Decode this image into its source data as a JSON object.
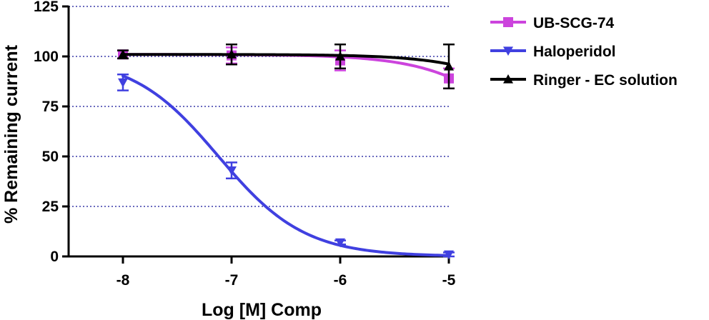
{
  "chart_data": {
    "type": "line",
    "title": "",
    "xlabel": "Log [M] Comp",
    "ylabel": "% Remaining current",
    "xlim": [
      -8.5,
      -5
    ],
    "ylim": [
      0,
      125
    ],
    "xticks": [
      -8,
      -7,
      -6,
      -5
    ],
    "xtick_labels": [
      "-8",
      "-7",
      "-6",
      "-5"
    ],
    "yticks": [
      0,
      25,
      50,
      75,
      100,
      125
    ],
    "ytick_labels": [
      "0",
      "25",
      "50",
      "75",
      "100",
      "125"
    ],
    "grid": "horizontal dotted",
    "legend_position": "right",
    "colors": {
      "grid": "#3a3aa8",
      "axis": "#000000"
    },
    "series": [
      {
        "name": "UB-SCG-74",
        "color": "#cc44dd",
        "marker": "square",
        "x": [
          -8,
          -7,
          -6,
          -5
        ],
        "y": [
          101,
          100.5,
          98,
          89
        ],
        "err": [
          2,
          4,
          5,
          5
        ],
        "fit": {
          "top": 101,
          "bottom": 0,
          "logIC50": -4.1,
          "hill": 1
        }
      },
      {
        "name": "Haloperidol",
        "color": "#4040e0",
        "marker": "triangle-down",
        "x": [
          -8,
          -7,
          -6,
          -5
        ],
        "y": [
          87,
          43,
          7,
          1
        ],
        "err": [
          4,
          4,
          1,
          1
        ],
        "fit": {
          "top": 100,
          "bottom": 0,
          "logIC50": -7.12,
          "hill": 1.1
        }
      },
      {
        "name": "Ringer - EC solution",
        "color": "#000000",
        "marker": "triangle-up",
        "x": [
          -8,
          -7,
          -6,
          -5
        ],
        "y": [
          101,
          101,
          100,
          95
        ],
        "err": [
          2,
          5,
          6,
          11
        ],
        "fit": {
          "top": 101,
          "bottom": 0,
          "logIC50": -3.7,
          "hill": 1
        }
      }
    ]
  }
}
